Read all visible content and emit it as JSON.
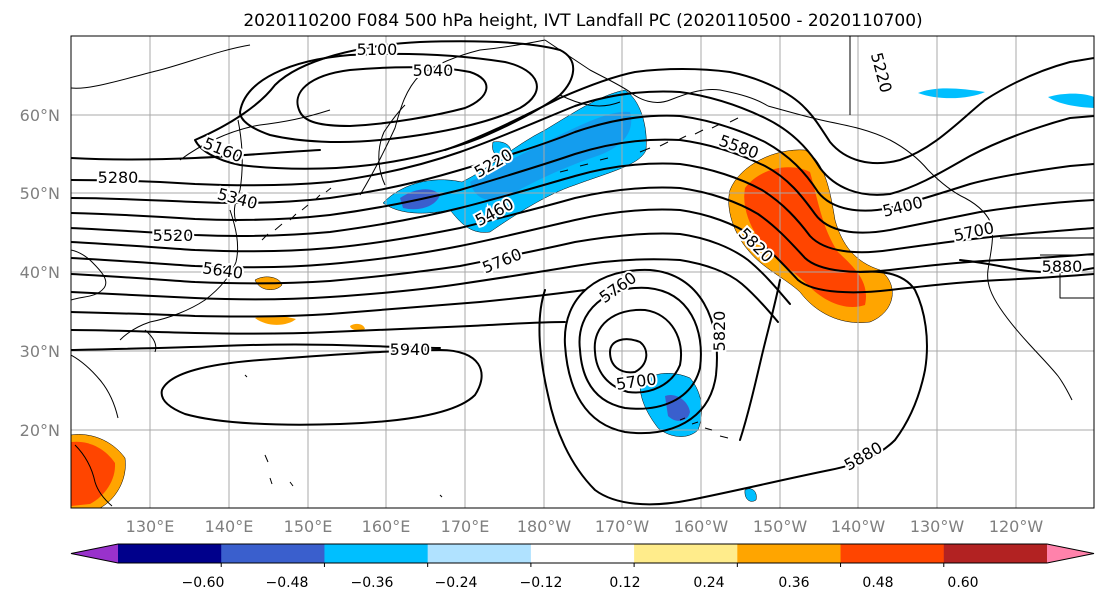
{
  "title": "2020110200 F084 500 hPa height, IVT Landfall PC (2020110500 - 2020110700)",
  "lat_labels": [
    "60°N",
    "50°N",
    "40°N",
    "30°N",
    "20°N"
  ],
  "lon_labels": [
    "130°E",
    "140°E",
    "150°E",
    "160°E",
    "170°E",
    "180°W",
    "170°W",
    "160°W",
    "150°W",
    "140°W",
    "130°W",
    "120°W"
  ],
  "contour_labels": [
    "5100",
    "5040",
    "5220",
    "5160",
    "5280",
    "5340",
    "5220",
    "5460",
    "5580",
    "5400",
    "5700",
    "5520",
    "5640",
    "5760",
    "5820",
    "5880",
    "5760",
    "5820",
    "5940",
    "5700",
    "5880"
  ],
  "colorbar": {
    "colors": [
      "#9932cc",
      "#00008b",
      "#3a5fcd",
      "#00bfff",
      "#b0e2ff",
      "#ffffff",
      "#ffec8b",
      "#ffa500",
      "#ff4500",
      "#b22222",
      "#ff82ab"
    ],
    "tick_labels": [
      "−0.60",
      "−0.48",
      "−0.36",
      "−0.24",
      "−0.12",
      "0.12",
      "0.24",
      "0.36",
      "0.48",
      "0.60"
    ]
  }
}
